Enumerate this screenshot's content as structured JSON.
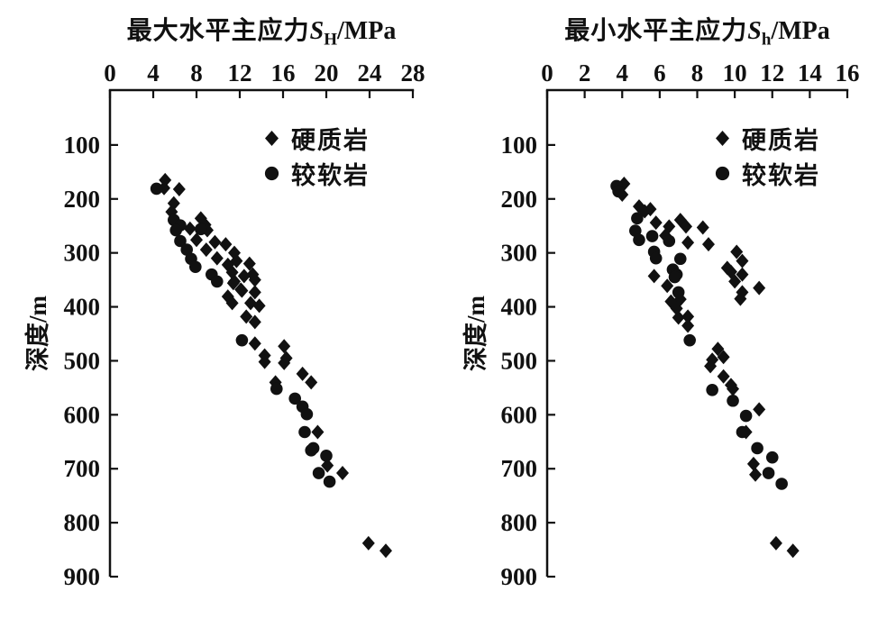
{
  "figure": {
    "background": "#ffffff",
    "ink_color": "#111111",
    "depth_axis_label": "深度/m"
  },
  "chart_data": [
    {
      "type": "scatter",
      "panel": "left",
      "title_prefix": "最大水平主应力",
      "title_symbol": "S",
      "title_symbol_sub": "H",
      "title_suffix": "/MPa",
      "xlim": [
        0,
        28
      ],
      "xticks": [
        0,
        4,
        8,
        12,
        16,
        20,
        24,
        28
      ],
      "ylabel": "深度/m",
      "ylim": [
        0,
        900
      ],
      "yticks": [
        100,
        200,
        300,
        400,
        500,
        600,
        700,
        800,
        900
      ],
      "y_axis_direction": "down",
      "grid": false,
      "legend_position": "top-right-inside",
      "series": [
        {
          "name": "硬质岩",
          "marker": "diamond",
          "color": "#111111",
          "points": [
            [
              5.1,
              165
            ],
            [
              5.0,
              180
            ],
            [
              6.4,
              182
            ],
            [
              5.9,
              208
            ],
            [
              5.7,
              224
            ],
            [
              8.4,
              236
            ],
            [
              8.8,
              248
            ],
            [
              7.4,
              255
            ],
            [
              9.0,
              258
            ],
            [
              8.0,
              276
            ],
            [
              9.7,
              280
            ],
            [
              10.7,
              284
            ],
            [
              8.9,
              294
            ],
            [
              11.5,
              300
            ],
            [
              9.9,
              310
            ],
            [
              11.7,
              315
            ],
            [
              12.9,
              320
            ],
            [
              10.9,
              322
            ],
            [
              11.3,
              336
            ],
            [
              13.2,
              340
            ],
            [
              12.4,
              343
            ],
            [
              13.4,
              350
            ],
            [
              11.5,
              353
            ],
            [
              11.4,
              356
            ],
            [
              12.1,
              368
            ],
            [
              12.2,
              370
            ],
            [
              13.4,
              373
            ],
            [
              10.9,
              381
            ],
            [
              11.3,
              393
            ],
            [
              13.0,
              393
            ],
            [
              13.8,
              398
            ],
            [
              12.6,
              418
            ],
            [
              13.4,
              428
            ],
            [
              13.4,
              468
            ],
            [
              16.1,
              473
            ],
            [
              14.3,
              490
            ],
            [
              16.3,
              495
            ],
            [
              14.3,
              502
            ],
            [
              16.1,
              504
            ],
            [
              17.8,
              524
            ],
            [
              15.3,
              540
            ],
            [
              18.6,
              540
            ],
            [
              19.2,
              632
            ],
            [
              20.1,
              694
            ],
            [
              21.5,
              708
            ],
            [
              23.9,
              838
            ],
            [
              25.5,
              852
            ]
          ]
        },
        {
          "name": "较软岩",
          "marker": "circle",
          "color": "#111111",
          "points": [
            [
              4.3,
              181
            ],
            [
              5.9,
              239
            ],
            [
              6.5,
              249
            ],
            [
              8.4,
              256
            ],
            [
              6.1,
              258
            ],
            [
              6.5,
              278
            ],
            [
              7.1,
              294
            ],
            [
              7.5,
              311
            ],
            [
              7.9,
              326
            ],
            [
              9.4,
              340
            ],
            [
              9.9,
              353
            ],
            [
              12.2,
              462
            ],
            [
              15.4,
              552
            ],
            [
              17.1,
              570
            ],
            [
              17.8,
              585
            ],
            [
              18.2,
              599
            ],
            [
              18.0,
              632
            ],
            [
              18.8,
              662
            ],
            [
              18.6,
              666
            ],
            [
              20.0,
              676
            ],
            [
              19.3,
              708
            ],
            [
              20.3,
              724
            ]
          ]
        }
      ]
    },
    {
      "type": "scatter",
      "panel": "right",
      "title_prefix": "最小水平主应力",
      "title_symbol": "S",
      "title_symbol_sub": "h",
      "title_suffix": "/MPa",
      "xlim": [
        0,
        16
      ],
      "xticks": [
        0,
        2,
        4,
        6,
        8,
        10,
        12,
        14,
        16
      ],
      "ylabel": "深度/m",
      "ylim": [
        0,
        900
      ],
      "yticks": [
        100,
        200,
        300,
        400,
        500,
        600,
        700,
        800,
        900
      ],
      "y_axis_direction": "down",
      "grid": false,
      "legend_position": "top-right-inside",
      "series": [
        {
          "name": "硬质岩",
          "marker": "diamond",
          "color": "#111111",
          "points": [
            [
              4.1,
              172
            ],
            [
              4.0,
              192
            ],
            [
              4.9,
              214
            ],
            [
              5.5,
              219
            ],
            [
              5.2,
              223
            ],
            [
              7.1,
              239
            ],
            [
              5.8,
              244
            ],
            [
              6.5,
              251
            ],
            [
              7.4,
              251
            ],
            [
              8.3,
              253
            ],
            [
              6.3,
              268
            ],
            [
              7.5,
              281
            ],
            [
              8.6,
              284
            ],
            [
              10.1,
              298
            ],
            [
              10.4,
              315
            ],
            [
              9.6,
              328
            ],
            [
              9.8,
              335
            ],
            [
              10.4,
              340
            ],
            [
              5.7,
              343
            ],
            [
              10.0,
              353
            ],
            [
              6.4,
              361
            ],
            [
              11.3,
              365
            ],
            [
              10.4,
              373
            ],
            [
              10.3,
              385
            ],
            [
              7.1,
              386
            ],
            [
              6.6,
              390
            ],
            [
              6.9,
              403
            ],
            [
              7.5,
              418
            ],
            [
              7.0,
              420
            ],
            [
              7.5,
              435
            ],
            [
              9.1,
              478
            ],
            [
              9.4,
              493
            ],
            [
              8.8,
              498
            ],
            [
              8.7,
              510
            ],
            [
              9.4,
              529
            ],
            [
              9.8,
              545
            ],
            [
              9.9,
              552
            ],
            [
              11.3,
              590
            ],
            [
              10.6,
              632
            ],
            [
              11.0,
              691
            ],
            [
              11.1,
              711
            ],
            [
              12.2,
              838
            ],
            [
              13.1,
              852
            ]
          ]
        },
        {
          "name": "较软岩",
          "marker": "circle",
          "color": "#111111",
          "points": [
            [
              3.7,
              176
            ],
            [
              3.8,
              186
            ],
            [
              4.8,
              236
            ],
            [
              4.7,
              259
            ],
            [
              5.6,
              269
            ],
            [
              4.9,
              276
            ],
            [
              6.5,
              278
            ],
            [
              5.7,
              298
            ],
            [
              5.8,
              310
            ],
            [
              7.1,
              311
            ],
            [
              6.7,
              331
            ],
            [
              6.9,
              340
            ],
            [
              6.8,
              345
            ],
            [
              7.0,
              373
            ],
            [
              7.6,
              462
            ],
            [
              8.8,
              554
            ],
            [
              9.9,
              574
            ],
            [
              10.6,
              602
            ],
            [
              10.4,
              632
            ],
            [
              11.2,
              662
            ],
            [
              12.0,
              679
            ],
            [
              11.8,
              708
            ],
            [
              12.5,
              728
            ]
          ]
        }
      ]
    }
  ]
}
